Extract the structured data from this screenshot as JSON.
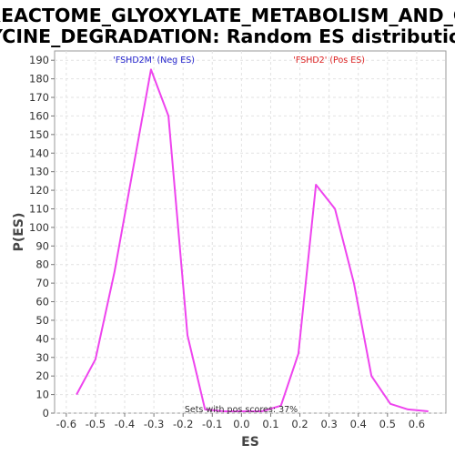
{
  "chart_data": {
    "type": "line",
    "title_line1": "REACTOME_GLYOXYLATE_METABOLISM_AND_G",
    "title_line2": "LYCINE_DEGRADATION: Random ES distribution",
    "xlabel": "ES",
    "ylabel": "P(ES)",
    "xlim": [
      -0.64,
      0.7
    ],
    "ylim": [
      0,
      195
    ],
    "x_ticks": [
      -0.6,
      -0.5,
      -0.4,
      -0.3,
      -0.2,
      -0.1,
      0.0,
      0.1,
      0.2,
      0.3,
      0.4,
      0.5,
      0.6
    ],
    "x_tick_labels": [
      "-0.6",
      "-0.5",
      "-0.4",
      "-0.3",
      "-0.2",
      "-0.1",
      "0.0",
      "0.1",
      "0.2",
      "0.3",
      "0.4",
      "0.5",
      "0.6"
    ],
    "y_ticks": [
      0,
      10,
      20,
      30,
      40,
      50,
      60,
      70,
      80,
      90,
      100,
      110,
      120,
      130,
      140,
      150,
      160,
      170,
      180,
      190
    ],
    "grid": true,
    "series": [
      {
        "color": "#ee44ee",
        "x": [
          -0.565,
          -0.5,
          -0.435,
          -0.31,
          -0.25,
          -0.185,
          -0.125,
          -0.06,
          0.0,
          0.07,
          0.135,
          0.195,
          0.255,
          0.32,
          0.385,
          0.445,
          0.51,
          0.57,
          0.64
        ],
        "y": [
          10,
          29,
          76,
          185,
          160,
          42,
          2,
          1,
          1,
          1,
          4,
          32,
          123,
          110,
          70,
          20,
          5,
          2,
          1
        ]
      }
    ],
    "annotations": [
      {
        "text": "'FSHD2M' (Neg ES)",
        "x": -0.3,
        "color": "#2222cc"
      },
      {
        "text": "'FSHD2' (Pos ES)",
        "x": 0.3,
        "color": "#dd2222"
      }
    ],
    "footer": "Sets with pos scores: 37%"
  }
}
